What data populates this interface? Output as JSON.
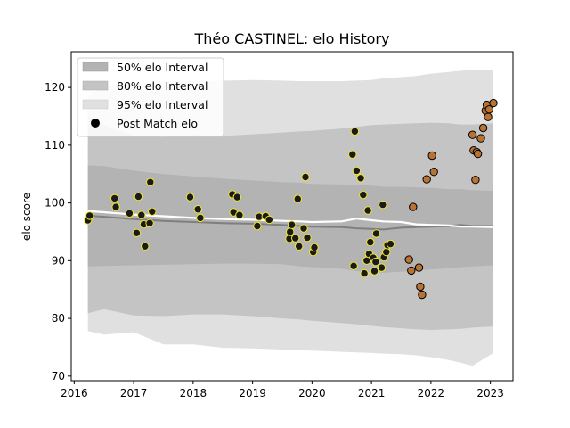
{
  "chart_data": {
    "type": "scatter",
    "title": "Théo CASTINEL: elo History",
    "xlabel": "",
    "ylabel": "elo score",
    "xlim": [
      2015.95,
      2023.38
    ],
    "ylim": [
      69.2,
      126.2
    ],
    "x_ticks": [
      2016,
      2017,
      2018,
      2019,
      2020,
      2021,
      2022,
      2023
    ],
    "x_tick_labels": [
      "2016",
      "2017",
      "2018",
      "2019",
      "2020",
      "2021",
      "2022",
      "2023"
    ],
    "y_ticks": [
      70,
      80,
      90,
      100,
      110,
      120
    ],
    "y_tick_labels": [
      "70",
      "80",
      "90",
      "100",
      "110",
      "120"
    ],
    "grid": false,
    "legend": {
      "position": "top-left",
      "entries": [
        "50% elo Interval",
        "80% elo Interval",
        "95% elo Interval",
        "Post Match elo"
      ]
    },
    "bands": {
      "x": [
        2016.23,
        2016.5,
        2017.0,
        2017.5,
        2018.0,
        2018.5,
        2019.0,
        2019.5,
        2019.8,
        2020.0,
        2020.5,
        2020.75,
        2021.0,
        2021.2,
        2021.5,
        2021.75,
        2022.0,
        2022.3,
        2022.5,
        2022.7,
        2023.05
      ],
      "median": [
        97.8,
        97.6,
        97.2,
        96.9,
        96.7,
        96.5,
        96.4,
        96.2,
        96.0,
        95.9,
        95.8,
        95.6,
        95.5,
        95.4,
        95.7,
        95.8,
        95.9,
        96.0,
        96.2,
        96.0,
        96.0
      ],
      "mean": [
        98.6,
        98.4,
        98.0,
        97.7,
        97.4,
        97.2,
        97.1,
        96.9,
        96.8,
        96.7,
        96.8,
        97.3,
        97.0,
        96.8,
        96.7,
        96.3,
        96.2,
        96.1,
        95.9,
        95.9,
        95.8
      ],
      "p50": {
        "upper": [
          106.5,
          106.4,
          105.6,
          105.0,
          104.6,
          104.2,
          103.9,
          103.6,
          103.5,
          103.3,
          103.2,
          103.1,
          103.0,
          102.8,
          102.8,
          102.7,
          102.6,
          102.4,
          102.4,
          102.2,
          102.1
        ],
        "lower": [
          89.0,
          89.1,
          89.2,
          89.3,
          89.4,
          89.5,
          89.5,
          89.4,
          89.0,
          88.9,
          88.6,
          88.2,
          88.0,
          87.9,
          88.1,
          88.3,
          88.5,
          88.7,
          88.9,
          89.0,
          89.2
        ]
      },
      "p80": {
        "upper": [
          115.0,
          113.5,
          111.6,
          111.4,
          111.8,
          111.6,
          111.9,
          112.2,
          112.4,
          112.5,
          112.9,
          113.2,
          113.5,
          113.6,
          113.7,
          113.8,
          113.9,
          113.8,
          113.6,
          113.6,
          113.8
        ],
        "lower": [
          80.9,
          81.6,
          80.5,
          80.4,
          80.7,
          80.7,
          80.4,
          80.0,
          79.8,
          79.6,
          79.2,
          79.0,
          78.7,
          78.5,
          78.3,
          78.1,
          78.0,
          78.1,
          78.2,
          78.4,
          78.6
        ]
      },
      "p95": {
        "upper": [
          118.7,
          120.0,
          120.8,
          121.0,
          121.1,
          121.2,
          121.3,
          121.2,
          121.1,
          121.1,
          121.1,
          121.2,
          121.3,
          121.6,
          121.8,
          122.0,
          122.4,
          122.7,
          122.9,
          123.0,
          123.0
        ],
        "lower": [
          77.8,
          77.2,
          77.6,
          75.5,
          75.5,
          74.9,
          74.8,
          74.6,
          74.5,
          74.4,
          74.2,
          74.1,
          74.0,
          73.9,
          73.8,
          73.6,
          73.3,
          72.8,
          72.3,
          71.8,
          74.0
        ]
      }
    },
    "series": [
      {
        "name": "Post Match elo",
        "color": "#1a1a1a",
        "edge_color": "#f0e62a",
        "points": [
          [
            2016.23,
            97.0
          ],
          [
            2016.26,
            97.8
          ],
          [
            2016.68,
            100.8
          ],
          [
            2016.7,
            99.3
          ],
          [
            2016.93,
            98.2
          ],
          [
            2017.05,
            94.8
          ],
          [
            2017.08,
            101.1
          ],
          [
            2017.13,
            97.9
          ],
          [
            2017.17,
            96.3
          ],
          [
            2017.19,
            92.5
          ],
          [
            2017.27,
            96.5
          ],
          [
            2017.28,
            103.6
          ],
          [
            2017.31,
            98.5
          ],
          [
            2017.95,
            101.0
          ],
          [
            2018.08,
            98.9
          ],
          [
            2018.12,
            97.4
          ],
          [
            2018.66,
            101.5
          ],
          [
            2018.68,
            98.4
          ],
          [
            2018.74,
            101.0
          ],
          [
            2018.78,
            97.9
          ],
          [
            2019.08,
            96.0
          ],
          [
            2019.11,
            97.6
          ],
          [
            2019.22,
            97.7
          ],
          [
            2019.28,
            97.1
          ],
          [
            2019.62,
            93.8
          ],
          [
            2019.63,
            95.0
          ],
          [
            2019.66,
            96.2
          ],
          [
            2019.72,
            93.9
          ],
          [
            2019.76,
            100.7
          ],
          [
            2019.78,
            92.5
          ],
          [
            2019.86,
            95.6
          ],
          [
            2019.89,
            104.5
          ],
          [
            2019.92,
            94.0
          ],
          [
            2020.02,
            91.5
          ],
          [
            2020.04,
            92.3
          ],
          [
            2020.68,
            108.4
          ],
          [
            2020.7,
            89.1
          ],
          [
            2020.72,
            112.4
          ],
          [
            2020.75,
            105.6
          ],
          [
            2020.82,
            104.3
          ],
          [
            2020.86,
            101.4
          ],
          [
            2020.88,
            87.8
          ],
          [
            2020.92,
            90.0
          ],
          [
            2020.94,
            98.7
          ],
          [
            2020.96,
            91.2
          ],
          [
            2020.98,
            93.2
          ],
          [
            2021.03,
            90.5
          ],
          [
            2021.05,
            88.2
          ],
          [
            2021.07,
            89.8
          ],
          [
            2021.08,
            94.7
          ],
          [
            2021.17,
            88.8
          ],
          [
            2021.19,
            99.7
          ],
          [
            2021.21,
            90.6
          ],
          [
            2021.25,
            91.5
          ],
          [
            2021.27,
            92.7
          ],
          [
            2021.32,
            92.9
          ]
        ]
      },
      {
        "name": "Post Match elo",
        "color": "#b87333",
        "edge_color": "#000000",
        "points": [
          [
            2021.63,
            90.2
          ],
          [
            2021.67,
            88.3
          ],
          [
            2021.7,
            99.3
          ],
          [
            2021.8,
            88.8
          ],
          [
            2021.82,
            85.5
          ],
          [
            2021.85,
            84.1
          ],
          [
            2021.93,
            104.1
          ],
          [
            2022.02,
            108.2
          ],
          [
            2022.05,
            105.4
          ],
          [
            2022.7,
            111.8
          ],
          [
            2022.72,
            109.1
          ],
          [
            2022.75,
            104.0
          ],
          [
            2022.77,
            108.8
          ],
          [
            2022.79,
            108.5
          ],
          [
            2022.84,
            111.2
          ],
          [
            2022.88,
            113.0
          ],
          [
            2022.92,
            116.0
          ],
          [
            2022.94,
            117.0
          ],
          [
            2022.96,
            114.9
          ],
          [
            2022.98,
            116.2
          ],
          [
            2023.05,
            117.3
          ]
        ]
      }
    ],
    "colors": {
      "band_50": "#b3b3b3",
      "band_80": "#c4c4c4",
      "band_95": "#e0e0e0",
      "median_line": "#7f7f7f",
      "mean_line": "#ffffff"
    }
  }
}
